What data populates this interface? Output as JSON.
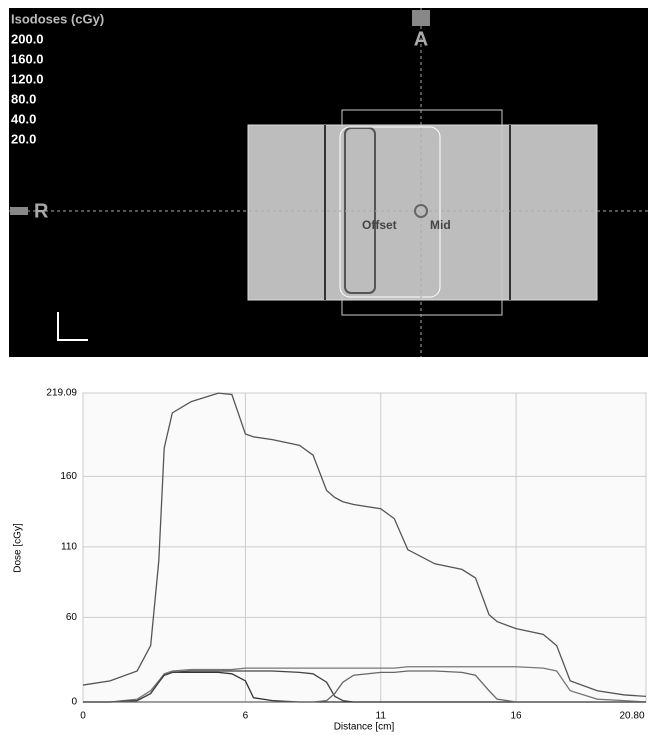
{
  "image_panel": {
    "legend_title": "Isodoses (cGy)",
    "isodose_levels": [
      "200.0",
      "160.0",
      "120.0",
      "80.0",
      "40.0",
      "20.0"
    ],
    "anterior_label": "A",
    "right_label": "R",
    "offset_label": "Offset",
    "mid_label": "Mid"
  },
  "chart_data": {
    "type": "line",
    "xlabel": "Distance [cm]",
    "ylabel": "Dose [cGy]",
    "x": [
      0,
      1,
      2,
      2.5,
      2.8,
      3,
      3.3,
      4,
      5,
      5.5,
      6,
      6.3,
      7,
      8,
      8.5,
      9,
      9.3,
      9.6,
      10,
      11,
      11.5,
      12,
      13,
      14,
      14.5,
      15,
      15.3,
      16,
      17,
      17.5,
      18,
      19,
      20,
      20.8
    ],
    "series": [
      {
        "color": "#555555",
        "values": [
          12,
          15,
          22,
          40,
          100,
          180,
          205,
          213,
          219,
          218,
          190,
          188,
          186,
          182,
          175,
          150,
          145,
          142,
          140,
          137,
          130,
          108,
          98,
          94,
          88,
          62,
          57,
          52,
          48,
          40,
          15,
          8,
          5,
          4
        ]
      },
      {
        "color": "#777777",
        "values": [
          0,
          0,
          2,
          8,
          15,
          20,
          22,
          23,
          23,
          23,
          24,
          24,
          24,
          24,
          24,
          24,
          24,
          24,
          24,
          24,
          24,
          25,
          25,
          25,
          25,
          25,
          25,
          25,
          24,
          22,
          8,
          2,
          1,
          0
        ]
      },
      {
        "color": "#333333",
        "values": [
          0,
          0,
          1,
          6,
          14,
          19,
          21,
          21,
          21,
          20,
          15,
          3,
          1,
          0,
          0,
          0,
          0,
          0,
          0,
          0,
          0,
          0,
          0,
          0,
          0,
          0,
          0,
          0,
          0,
          0,
          0,
          0,
          0,
          0
        ]
      },
      {
        "color": "#444444",
        "values": [
          0,
          0,
          1,
          6,
          14,
          19,
          21,
          22,
          22,
          22,
          22,
          22,
          22,
          21,
          20,
          14,
          4,
          1,
          0,
          0,
          0,
          0,
          0,
          0,
          0,
          0,
          0,
          0,
          0,
          0,
          0,
          0,
          0,
          0
        ]
      },
      {
        "color": "#666666",
        "values": [
          0,
          0,
          0,
          0,
          0,
          0,
          0,
          0,
          0,
          0,
          0,
          0,
          0,
          0,
          0,
          1,
          6,
          14,
          19,
          21,
          21,
          22,
          22,
          21,
          19,
          8,
          2,
          0,
          0,
          0,
          0,
          0,
          0,
          0
        ]
      }
    ],
    "xlim": [
      0,
      20.8
    ],
    "xticks": [
      0,
      6,
      11,
      16,
      {
        "value": 20.8,
        "label": "20.80"
      }
    ],
    "ylim": [
      0,
      219.09
    ],
    "yticks": [
      0,
      60,
      110,
      160,
      219.09
    ],
    "grid": true
  }
}
